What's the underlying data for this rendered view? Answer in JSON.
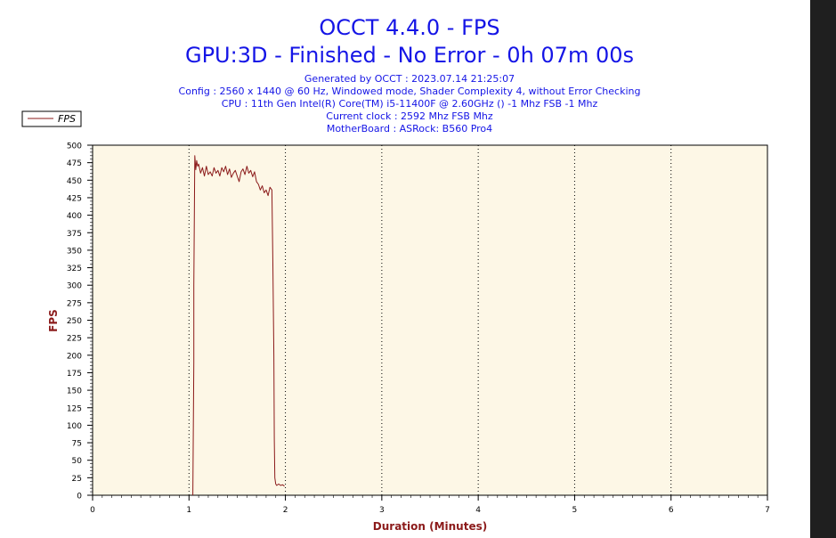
{
  "chart_data": {
    "type": "line",
    "title": "OCCT 4.4.0 - FPS",
    "subtitle": "GPU:3D - Finished - No Error - 0h 07m 00s",
    "info_lines": [
      "Generated by OCCT : 2023.07.14 21:25:07",
      "Config : 2560 x 1440 @ 60 Hz, Windowed mode, Shader Complexity 4, without Error Checking",
      "CPU : 11th Gen Intel(R) Core(TM) i5-11400F @ 2.60GHz () -1 Mhz FSB -1 Mhz",
      "Current clock : 2592 Mhz FSB  Mhz",
      "MotherBoard : ASRock: B560 Pro4"
    ],
    "xlabel": "Duration (Minutes)",
    "ylabel": "FPS",
    "xlim": [
      0,
      7
    ],
    "ylim": [
      0,
      500
    ],
    "xticks": [
      0,
      1,
      2,
      3,
      4,
      5,
      6,
      7
    ],
    "yticks": [
      0,
      25,
      50,
      75,
      100,
      125,
      150,
      175,
      200,
      225,
      250,
      275,
      300,
      325,
      350,
      375,
      400,
      425,
      450,
      475,
      500
    ],
    "grid": "vertical dotted",
    "legend": {
      "position": "top-left",
      "entries": [
        "FPS"
      ]
    },
    "series": [
      {
        "name": "FPS",
        "color": "#8b1a1a",
        "x": [
          1.04,
          1.05,
          1.05,
          1.06,
          1.07,
          1.08,
          1.09,
          1.1,
          1.12,
          1.14,
          1.16,
          1.18,
          1.2,
          1.22,
          1.24,
          1.26,
          1.28,
          1.3,
          1.32,
          1.34,
          1.36,
          1.38,
          1.4,
          1.42,
          1.44,
          1.46,
          1.48,
          1.5,
          1.52,
          1.54,
          1.56,
          1.58,
          1.6,
          1.62,
          1.64,
          1.66,
          1.68,
          1.7,
          1.72,
          1.74,
          1.76,
          1.78,
          1.8,
          1.82,
          1.84,
          1.86,
          1.87,
          1.88,
          1.885,
          1.89,
          1.9,
          1.91,
          1.93,
          1.95,
          1.97,
          1.99
        ],
        "y": [
          0,
          190,
          300,
          485,
          465,
          478,
          470,
          473,
          460,
          468,
          456,
          470,
          458,
          462,
          456,
          468,
          460,
          464,
          456,
          468,
          462,
          470,
          458,
          466,
          454,
          460,
          464,
          456,
          448,
          462,
          466,
          458,
          470,
          460,
          464,
          455,
          462,
          448,
          444,
          436,
          442,
          432,
          436,
          428,
          440,
          436,
          330,
          200,
          80,
          25,
          16,
          14,
          16,
          14,
          15,
          13
        ]
      }
    ]
  }
}
